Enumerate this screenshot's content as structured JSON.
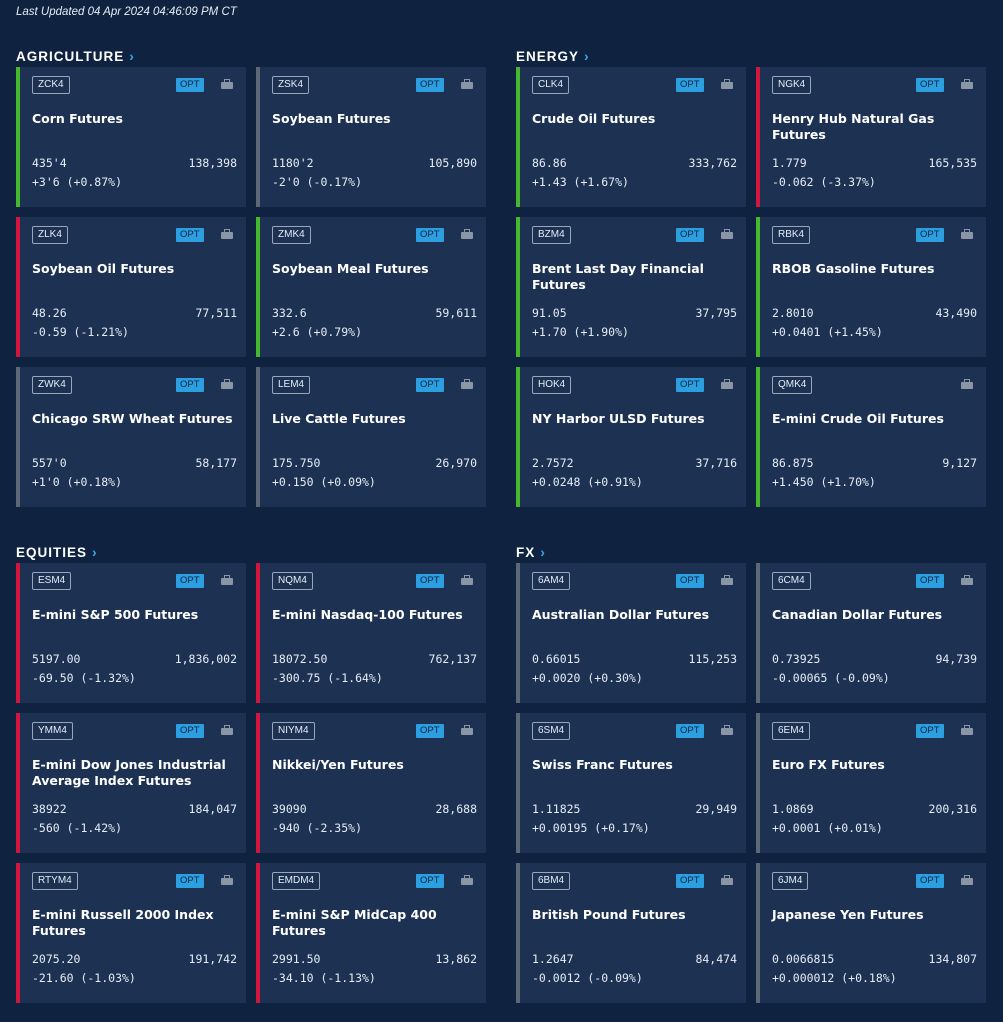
{
  "last_updated": "Last Updated 04 Apr 2024 04:46:09 PM CT",
  "icons": {
    "chevron": "chevron-right-icon",
    "briefcase": "briefcase-icon"
  },
  "colors": {
    "up": "#45b82e",
    "down": "#d3163d",
    "flat": "#5c6875",
    "opt": "#2c9fe0"
  },
  "sections": [
    {
      "id": "agriculture",
      "title": "AGRICULTURE",
      "cards": [
        {
          "code": "ZCK4",
          "opt": "OPT",
          "name": "Corn Futures",
          "price": "435'4",
          "volume": "138,398",
          "change": "+3'6 (+0.87%)",
          "trend": "up"
        },
        {
          "code": "ZSK4",
          "opt": "OPT",
          "name": "Soybean Futures",
          "price": "1180'2",
          "volume": "105,890",
          "change": "-2'0 (-0.17%)",
          "trend": "flat"
        },
        {
          "code": "ZLK4",
          "opt": "OPT",
          "name": "Soybean Oil Futures",
          "price": "48.26",
          "volume": "77,511",
          "change": "-0.59 (-1.21%)",
          "trend": "down"
        },
        {
          "code": "ZMK4",
          "opt": "OPT",
          "name": "Soybean Meal Futures",
          "price": "332.6",
          "volume": "59,611",
          "change": "+2.6 (+0.79%)",
          "trend": "up"
        },
        {
          "code": "ZWK4",
          "opt": "OPT",
          "name": "Chicago SRW Wheat Futures",
          "price": "557'0",
          "volume": "58,177",
          "change": "+1'0 (+0.18%)",
          "trend": "flat"
        },
        {
          "code": "LEM4",
          "opt": "OPT",
          "name": "Live Cattle Futures",
          "price": "175.750",
          "volume": "26,970",
          "change": "+0.150 (+0.09%)",
          "trend": "flat"
        }
      ]
    },
    {
      "id": "energy",
      "title": "ENERGY",
      "cards": [
        {
          "code": "CLK4",
          "opt": "OPT",
          "name": "Crude Oil Futures",
          "price": "86.86",
          "volume": "333,762",
          "change": "+1.43 (+1.67%)",
          "trend": "up"
        },
        {
          "code": "NGK4",
          "opt": "OPT",
          "name": "Henry Hub Natural Gas Futures",
          "price": "1.779",
          "volume": "165,535",
          "change": "-0.062 (-3.37%)",
          "trend": "down"
        },
        {
          "code": "BZM4",
          "opt": "OPT",
          "name": "Brent Last Day Financial Futures",
          "price": "91.05",
          "volume": "37,795",
          "change": "+1.70 (+1.90%)",
          "trend": "up"
        },
        {
          "code": "RBK4",
          "opt": "OPT",
          "name": "RBOB Gasoline Futures",
          "price": "2.8010",
          "volume": "43,490",
          "change": "+0.0401 (+1.45%)",
          "trend": "up"
        },
        {
          "code": "HOK4",
          "opt": "OPT",
          "name": "NY Harbor ULSD Futures",
          "price": "2.7572",
          "volume": "37,716",
          "change": "+0.0248 (+0.91%)",
          "trend": "up"
        },
        {
          "code": "QMK4",
          "opt": "",
          "name": "E-mini Crude Oil Futures",
          "price": "86.875",
          "volume": "9,127",
          "change": "+1.450 (+1.70%)",
          "trend": "up"
        }
      ]
    },
    {
      "id": "equities",
      "title": "EQUITIES",
      "cards": [
        {
          "code": "ESM4",
          "opt": "OPT",
          "name": "E-mini S&P 500 Futures",
          "price": "5197.00",
          "volume": "1,836,002",
          "change": "-69.50 (-1.32%)",
          "trend": "down"
        },
        {
          "code": "NQM4",
          "opt": "OPT",
          "name": "E-mini Nasdaq-100 Futures",
          "price": "18072.50",
          "volume": "762,137",
          "change": "-300.75 (-1.64%)",
          "trend": "down"
        },
        {
          "code": "YMM4",
          "opt": "OPT",
          "name": "E-mini Dow Jones Industrial Average Index Futures",
          "price": "38922",
          "volume": "184,047",
          "change": "-560 (-1.42%)",
          "trend": "down"
        },
        {
          "code": "NIYM4",
          "opt": "OPT",
          "name": "Nikkei/Yen Futures",
          "price": "39090",
          "volume": "28,688",
          "change": "-940 (-2.35%)",
          "trend": "down"
        },
        {
          "code": "RTYM4",
          "opt": "OPT",
          "name": "E-mini  Russell 2000 Index Futures",
          "price": "2075.20",
          "volume": "191,742",
          "change": "-21.60 (-1.03%)",
          "trend": "down"
        },
        {
          "code": "EMDM4",
          "opt": "OPT",
          "name": "E-mini S&P MidCap 400 Futures",
          "price": "2991.50",
          "volume": "13,862",
          "change": "-34.10 (-1.13%)",
          "trend": "down"
        }
      ]
    },
    {
      "id": "fx",
      "title": "FX",
      "cards": [
        {
          "code": "6AM4",
          "opt": "OPT",
          "name": "Australian Dollar Futures",
          "price": "0.66015",
          "volume": "115,253",
          "change": "+0.0020 (+0.30%)",
          "trend": "flat"
        },
        {
          "code": "6CM4",
          "opt": "OPT",
          "name": "Canadian Dollar Futures",
          "price": "0.73925",
          "volume": "94,739",
          "change": "-0.00065 (-0.09%)",
          "trend": "flat"
        },
        {
          "code": "6SM4",
          "opt": "OPT",
          "name": "Swiss Franc Futures",
          "price": "1.11825",
          "volume": "29,949",
          "change": "+0.00195 (+0.17%)",
          "trend": "flat"
        },
        {
          "code": "6EM4",
          "opt": "OPT",
          "name": "Euro FX Futures",
          "price": "1.0869",
          "volume": "200,316",
          "change": "+0.0001 (+0.01%)",
          "trend": "flat"
        },
        {
          "code": "6BM4",
          "opt": "OPT",
          "name": "British Pound Futures",
          "price": "1.2647",
          "volume": "84,474",
          "change": "-0.0012 (-0.09%)",
          "trend": "flat"
        },
        {
          "code": "6JM4",
          "opt": "OPT",
          "name": "Japanese Yen Futures",
          "price": "0.0066815",
          "volume": "134,807",
          "change": "+0.000012 (+0.18%)",
          "trend": "flat"
        }
      ]
    }
  ]
}
